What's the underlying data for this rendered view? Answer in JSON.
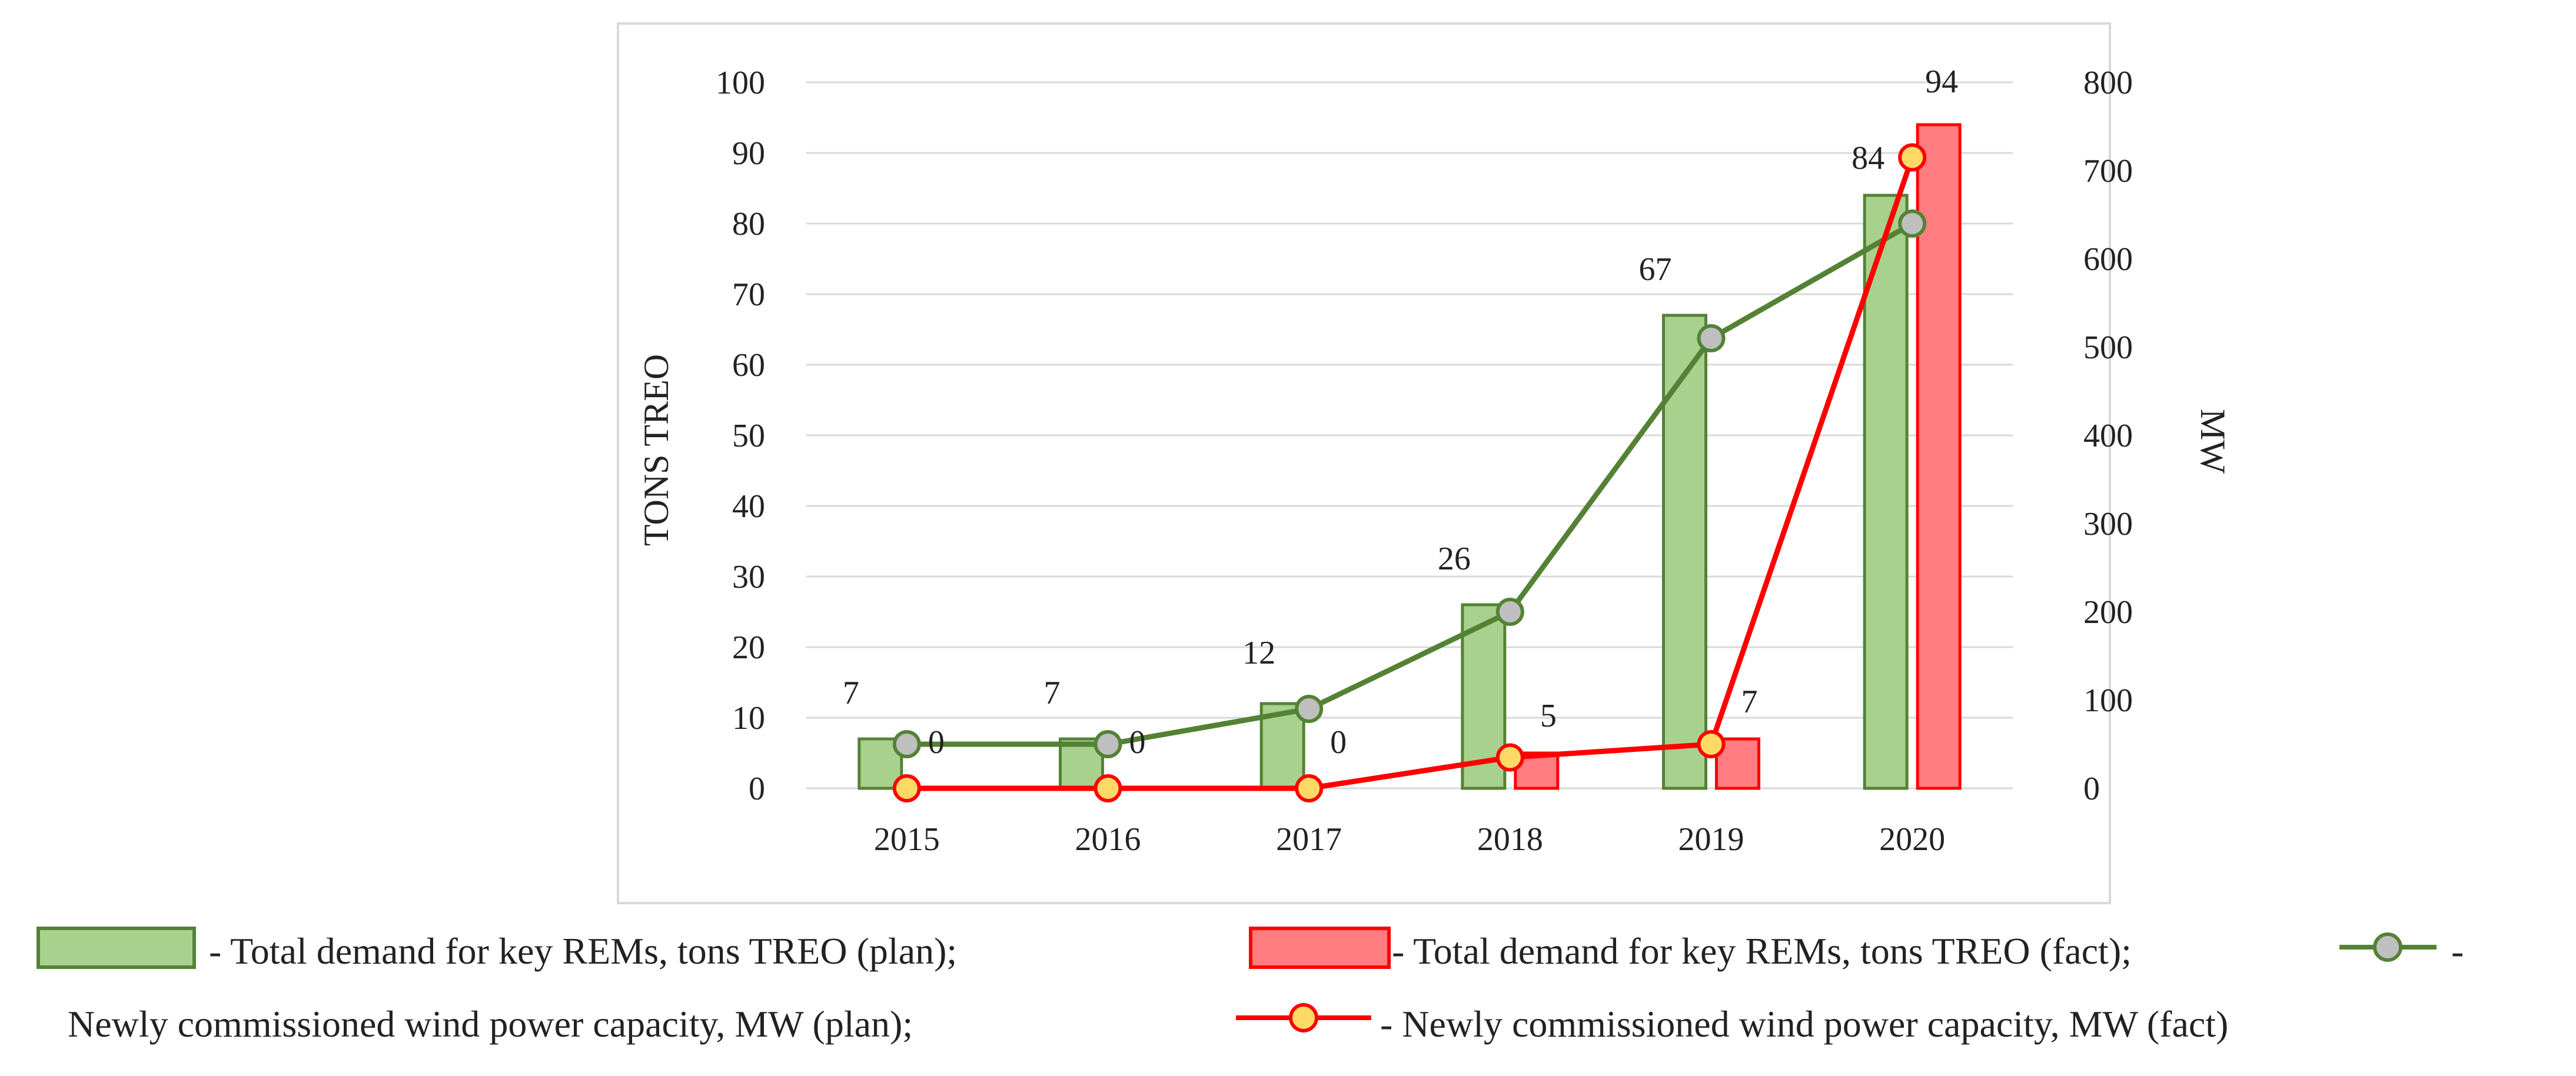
{
  "chart_data": {
    "type": "bar+line",
    "categories": [
      "2015",
      "2016",
      "2017",
      "2018",
      "2019",
      "2020"
    ],
    "y_left": {
      "label": "TONS TREO",
      "ylim": [
        0,
        100
      ],
      "ticks": [
        "0",
        "10",
        "20",
        "30",
        "40",
        "50",
        "60",
        "70",
        "80",
        "90",
        "100"
      ]
    },
    "y_right": {
      "label": "MW",
      "ylim": [
        0,
        800
      ],
      "ticks": [
        "0",
        "100",
        "200",
        "300",
        "400",
        "500",
        "600",
        "700",
        "800"
      ]
    },
    "series": [
      {
        "name": "Total demand for key REMs, tons TREO (plan)",
        "kind": "bar",
        "axis": "left",
        "fill": "#a9d18e",
        "stroke": "#548235",
        "values": [
          7,
          7,
          12,
          26,
          67,
          84
        ],
        "labels": [
          "7",
          "7",
          "12",
          "26",
          "67",
          "84"
        ]
      },
      {
        "name": "Total demand for key REMs, tons TREO (fact)",
        "kind": "bar",
        "axis": "left",
        "fill": "#ff7c80",
        "stroke": "#ff0000",
        "values": [
          0,
          0,
          0,
          5,
          7,
          94
        ],
        "labels": [
          "0",
          "0",
          "0",
          "5",
          "7",
          "94"
        ]
      },
      {
        "name": "Newly commissioned wind power capacity, MW (plan)",
        "kind": "line",
        "axis": "right",
        "stroke": "#548235",
        "marker_fill": "#bfbfbf",
        "marker_stroke": "#548235",
        "values": [
          50,
          50,
          90,
          200,
          510,
          640
        ]
      },
      {
        "name": "Newly commissioned wind power capacity, MW (fact)",
        "kind": "line",
        "axis": "right",
        "stroke": "#ff0000",
        "marker_fill": "#ffd966",
        "marker_stroke": "#ff0000",
        "values": [
          0,
          0,
          0,
          35,
          50,
          715
        ]
      }
    ],
    "legend": {
      "position": "bottom",
      "line1": [
        "- Total demand for key REMs, tons TREO (plan);",
        "- Total demand for key REMs, tons TREO (fact);",
        "-"
      ],
      "line2": [
        "Newly commissioned wind power capacity, MW (plan);",
        "- Newly commissioned wind power capacity, MW (fact)"
      ]
    }
  }
}
